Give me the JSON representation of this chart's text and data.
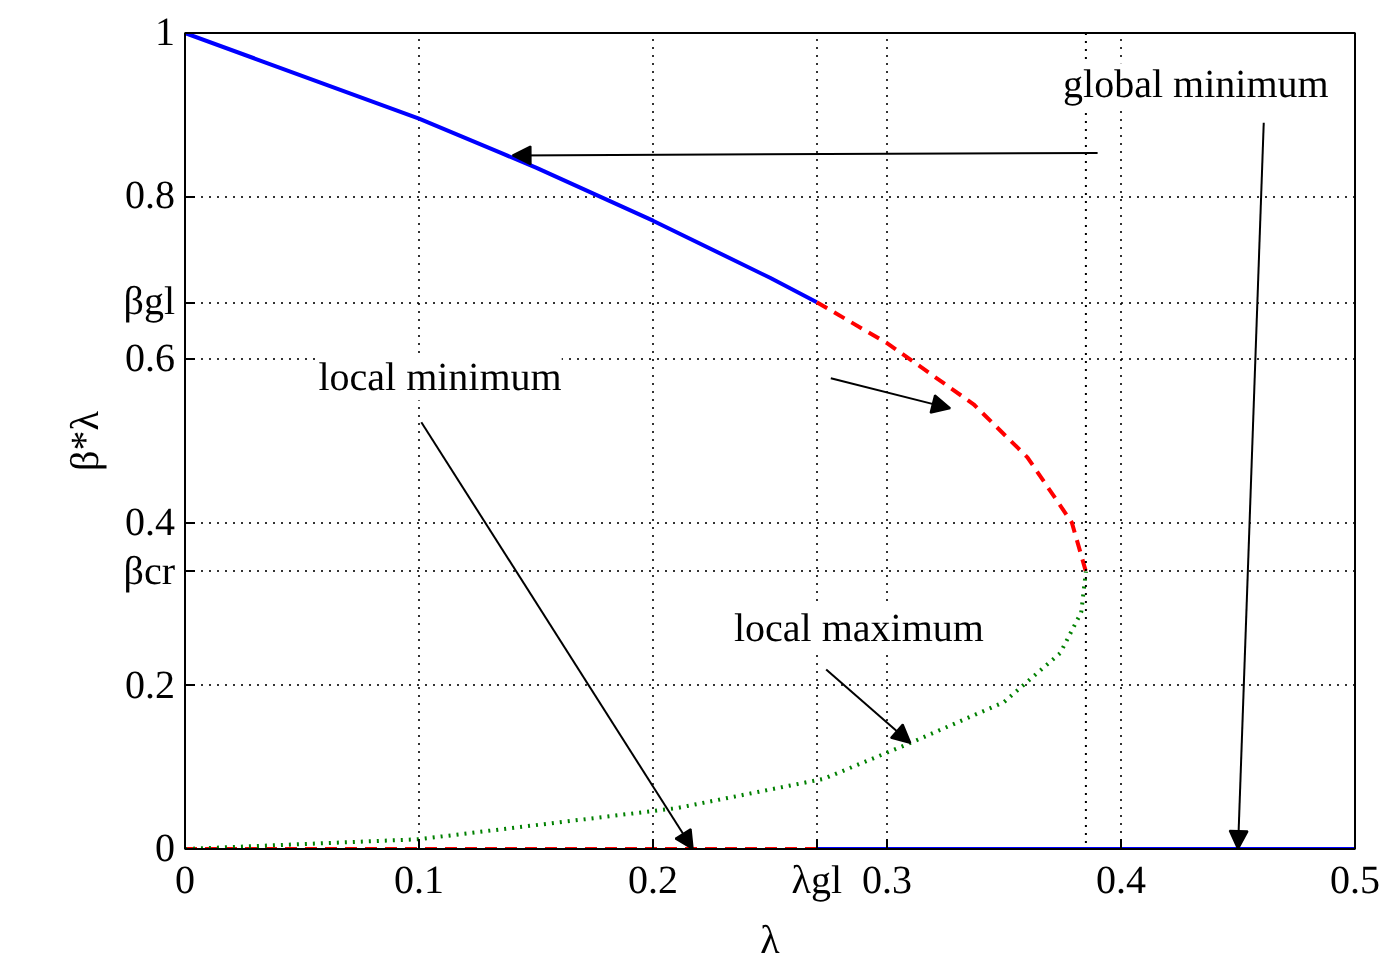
{
  "chart_data": {
    "type": "line",
    "xlabel": "λ",
    "ylabel": "β*λ",
    "xlim": [
      0,
      0.5
    ],
    "ylim": [
      0,
      1
    ],
    "xticks": [
      0,
      0.1,
      0.2,
      {
        "value": 0.27,
        "label": "λgl"
      },
      0.3,
      0.4,
      0.5
    ],
    "yticks": [
      0,
      0.2,
      {
        "value": 0.34,
        "label": "βcr"
      },
      0.4,
      0.6,
      {
        "value": 0.67,
        "label": "βgl"
      },
      0.8,
      1
    ],
    "grid": true,
    "series": [
      {
        "color": "#0000ff",
        "line_style": "solid",
        "x": [
          0,
          0.1,
          0.135,
          0.15,
          0.2,
          0.25,
          0.27,
          null,
          0.27,
          0.5
        ],
        "values": [
          1,
          0.895,
          0.853,
          0.835,
          0.77,
          0.7,
          0.67,
          null,
          0,
          0
        ]
      },
      {
        "color": "#ff0000",
        "line_style": "dashed",
        "x": [
          0.27,
          0.3,
          0.337,
          0.36,
          0.379,
          0.385,
          null,
          0,
          0.27
        ],
        "values": [
          0.67,
          0.62,
          0.545,
          0.48,
          0.4,
          0.34,
          null,
          0,
          0
        ]
      },
      {
        "color": "#008000",
        "line_style": "dotted",
        "x": [
          0,
          0.1,
          0.21,
          0.273,
          0.31,
          0.35,
          0.374,
          0.383,
          0.385
        ],
        "values": [
          0,
          0.012,
          0.05,
          0.086,
          0.13,
          0.18,
          0.24,
          0.29,
          0.34
        ]
      }
    ],
    "ref_lines": [
      {
        "axis": "x",
        "value": 0.385,
        "color": "#000000",
        "line_style": "dotted"
      }
    ],
    "annotations": [
      "global minimum",
      "local minimum",
      {
        "text": "local maximum",
        "x": 0.31,
        "y": 0.13
      }
    ]
  }
}
